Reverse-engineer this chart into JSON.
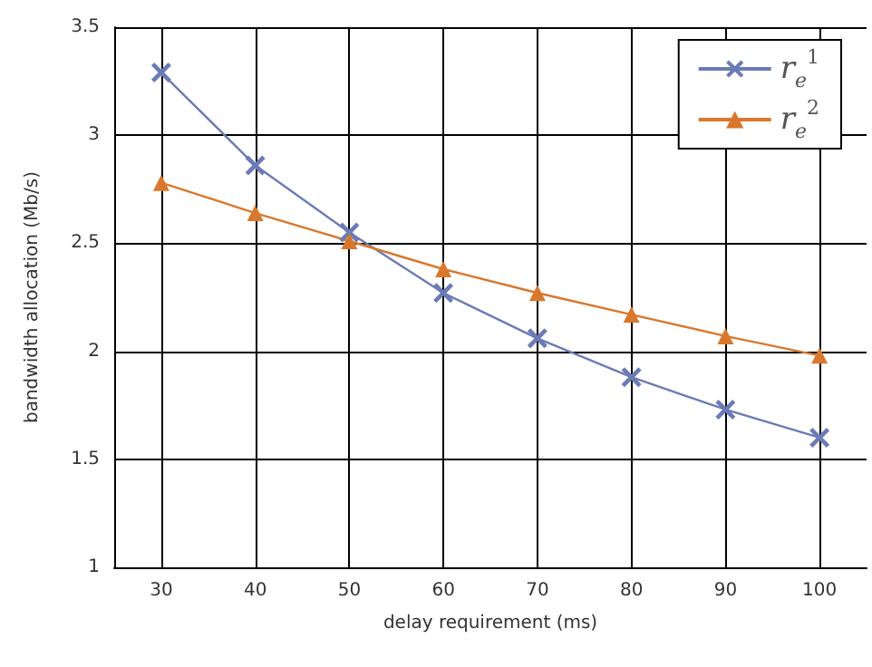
{
  "chart_data": {
    "type": "line",
    "xlabel": "delay requirement (ms)",
    "ylabel": "bandwidth allocation (Mb/s)",
    "x": [
      30,
      40,
      50,
      60,
      70,
      80,
      90,
      100
    ],
    "series": [
      {
        "name": "r$_{e}$$^{1}$",
        "color": "#6b7bb5",
        "marker": "cross",
        "values": [
          3.29,
          2.86,
          2.55,
          2.27,
          2.06,
          1.88,
          1.73,
          1.6
        ]
      },
      {
        "name": "r$_{e}$$^{2}$",
        "color": "#d9782d",
        "marker": "triangle",
        "values": [
          2.78,
          2.64,
          2.51,
          2.38,
          2.27,
          2.17,
          2.07,
          1.98
        ]
      }
    ],
    "xlim": [
      25,
      105
    ],
    "xticks": [
      30,
      40,
      50,
      60,
      70,
      80,
      90,
      100
    ],
    "ylim": [
      1,
      3.5
    ],
    "yticks": [
      1,
      1.5,
      2,
      2.5,
      3,
      3.5
    ],
    "grid": true,
    "legend": "top right",
    "line_style": "solid"
  }
}
